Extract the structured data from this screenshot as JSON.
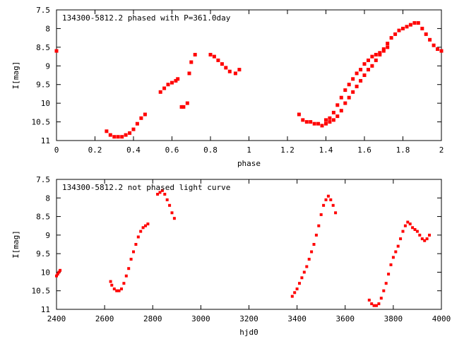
{
  "chart_data": [
    {
      "type": "scatter",
      "title": "134300-5812.2 phased with P=361.0day",
      "xlabel": "phase",
      "ylabel": "I[mag]",
      "xlim": [
        0,
        2
      ],
      "ylim": [
        11,
        7.5
      ],
      "y_inverted": true,
      "xticks": [
        "0",
        "0.2",
        "0.4",
        "0.6",
        "0.8",
        "1",
        "1.2",
        "1.4",
        "1.6",
        "1.8",
        "2"
      ],
      "yticks": [
        "7.5",
        "8",
        "8.5",
        "9",
        "9.5",
        "10",
        "10.5",
        "11"
      ],
      "marker_color": "#ff0000",
      "grid": false,
      "series": [
        {
          "x": [
            0.0,
            0.26,
            0.28,
            0.3,
            0.32,
            0.34,
            0.36,
            0.38,
            0.4,
            0.42,
            0.44,
            0.46,
            0.54,
            0.56,
            0.58,
            0.6,
            0.62,
            0.63,
            0.65,
            0.66,
            0.68,
            0.69,
            0.7,
            0.72,
            0.8,
            0.82,
            0.84,
            0.86,
            0.88,
            0.9,
            0.93,
            0.95,
            1.26,
            1.28,
            1.3,
            1.32,
            1.34,
            1.36,
            1.38,
            1.4,
            1.42,
            1.44,
            1.46,
            1.48,
            1.5,
            1.52,
            1.54,
            1.56,
            1.58,
            1.6,
            1.62,
            1.64,
            1.66,
            1.68,
            1.7,
            1.72,
            1.74,
            1.76,
            1.78,
            1.8,
            1.82,
            1.84,
            1.86,
            1.88,
            1.9,
            1.92,
            1.94,
            1.96,
            1.98,
            2.0
          ],
          "y": [
            8.6,
            10.75,
            10.85,
            10.9,
            10.9,
            10.9,
            10.85,
            10.8,
            10.7,
            10.55,
            10.4,
            10.3,
            9.7,
            9.6,
            9.5,
            9.45,
            9.4,
            9.35,
            10.1,
            10.1,
            10.0,
            9.2,
            8.9,
            8.7,
            8.7,
            8.75,
            8.85,
            8.95,
            9.05,
            9.15,
            9.2,
            9.1,
            10.3,
            10.45,
            10.5,
            10.5,
            10.55,
            10.55,
            10.6,
            10.55,
            10.5,
            10.45,
            10.35,
            10.2,
            10.0,
            9.85,
            9.7,
            9.55,
            9.4,
            9.25,
            9.1,
            9.0,
            8.85,
            8.7,
            8.55,
            8.4,
            8.25,
            8.15,
            8.05,
            8.0,
            7.95,
            7.9,
            7.85,
            7.85,
            8.0,
            8.15,
            8.3,
            8.45,
            8.55,
            8.6
          ]
        },
        {
          "x": [
            1.4,
            1.42,
            1.44,
            1.46,
            1.48,
            1.5,
            1.52,
            1.54,
            1.56,
            1.58,
            1.6,
            1.62,
            1.64,
            1.66,
            1.68,
            1.7,
            1.72
          ],
          "y": [
            10.45,
            10.4,
            10.25,
            10.05,
            9.85,
            9.65,
            9.5,
            9.35,
            9.2,
            9.1,
            8.95,
            8.85,
            8.75,
            8.7,
            8.65,
            8.6,
            8.5
          ]
        }
      ]
    },
    {
      "type": "scatter",
      "title": "134300-5812.2 not phased light curve",
      "xlabel": "hjd0",
      "ylabel": "I[mag]",
      "xlim": [
        2400,
        4000
      ],
      "ylim": [
        11,
        7.5
      ],
      "y_inverted": true,
      "xticks": [
        "2400",
        "2600",
        "2800",
        "3000",
        "3200",
        "3400",
        "3600",
        "3800",
        "4000"
      ],
      "yticks": [
        "7.5",
        "8",
        "8.5",
        "9",
        "9.5",
        "10",
        "10.5",
        "11"
      ],
      "marker_color": "#ff0000",
      "grid": false,
      "series": [
        {
          "x": [
            2400,
            2405,
            2410,
            2415,
            2625,
            2630,
            2640,
            2650,
            2660,
            2670,
            2680,
            2690,
            2700,
            2710,
            2720,
            2730,
            2740,
            2750,
            2760,
            2770,
            2780,
            2820,
            2830,
            2840,
            2850,
            2860,
            2870,
            2880,
            2890
          ],
          "y": [
            10.1,
            10.05,
            10.0,
            9.95,
            10.25,
            10.35,
            10.45,
            10.5,
            10.5,
            10.45,
            10.3,
            10.1,
            9.9,
            9.65,
            9.45,
            9.25,
            9.05,
            8.9,
            8.8,
            8.75,
            8.7,
            7.9,
            7.85,
            7.8,
            7.9,
            8.05,
            8.2,
            8.4,
            8.55
          ]
        },
        {
          "x": [
            3380,
            3390,
            3400,
            3410,
            3420,
            3430,
            3440,
            3450,
            3460,
            3470,
            3480,
            3490,
            3500,
            3510,
            3520,
            3530,
            3540,
            3550,
            3560
          ],
          "y": [
            10.65,
            10.55,
            10.45,
            10.3,
            10.15,
            10.0,
            9.85,
            9.65,
            9.45,
            9.25,
            9.0,
            8.75,
            8.45,
            8.2,
            8.05,
            7.95,
            8.05,
            8.2,
            8.4
          ]
        },
        {
          "x": [
            3700,
            3710,
            3720,
            3730,
            3740,
            3750,
            3760,
            3770,
            3780,
            3790,
            3800,
            3810,
            3820,
            3830,
            3840,
            3850,
            3860,
            3870,
            3880,
            3890,
            3900,
            3910,
            3920,
            3930,
            3940,
            3950
          ],
          "y": [
            10.75,
            10.85,
            10.9,
            10.9,
            10.85,
            10.7,
            10.5,
            10.3,
            10.05,
            9.8,
            9.6,
            9.45,
            9.3,
            9.1,
            8.9,
            8.75,
            8.65,
            8.7,
            8.8,
            8.85,
            8.9,
            9.0,
            9.1,
            9.15,
            9.1,
            9.0
          ]
        }
      ]
    }
  ]
}
